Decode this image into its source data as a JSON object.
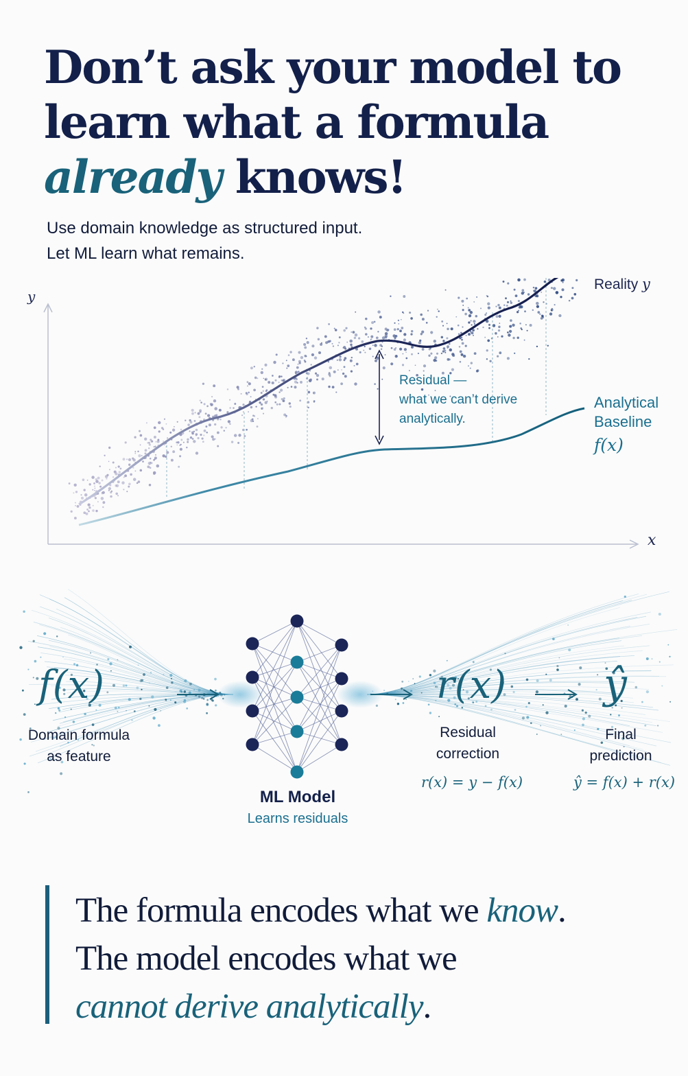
{
  "headline": {
    "line1": "Don’t ask your model to",
    "line2": "learn what a formula",
    "line3_accent": "already",
    "line3_rest": " knows!"
  },
  "subtitle": {
    "line1": "Use domain knowledge as structured input.",
    "line2": "Let ML learn what remains."
  },
  "chart": {
    "y_axis_label": "y",
    "x_axis_label": "x",
    "reality_label": "Reality",
    "reality_symbol": "y",
    "residual_label": [
      "Residual —",
      "what we can’t derive",
      "analytically."
    ],
    "baseline_label": [
      "Analytical",
      "Baseline"
    ],
    "baseline_symbol": "f(x)"
  },
  "flow": {
    "input_symbol": "f(x)",
    "input_caption": [
      "Domain formula",
      "as feature"
    ],
    "model_title": "ML Model",
    "model_subtitle": "Learns residuals",
    "residual_symbol": "r(x)",
    "residual_caption": [
      "Residual",
      "correction"
    ],
    "residual_formula": "r(x) = y − f(x)",
    "output_symbol": "ŷ",
    "output_caption": [
      "Final",
      "prediction"
    ],
    "output_formula": "ŷ = f(x) + r(x)"
  },
  "quote": {
    "line1_start": "The formula encodes what we ",
    "line1_accent": "know",
    "line1_end": ".",
    "line2": "The model encodes what we",
    "line3_accent": "cannot derive analytically",
    "line3_end": "."
  },
  "colors": {
    "navy": "#13204a",
    "teal": "#19627a",
    "teal_light": "#1a6f8f",
    "grey_axis": "#b9bfd0"
  }
}
